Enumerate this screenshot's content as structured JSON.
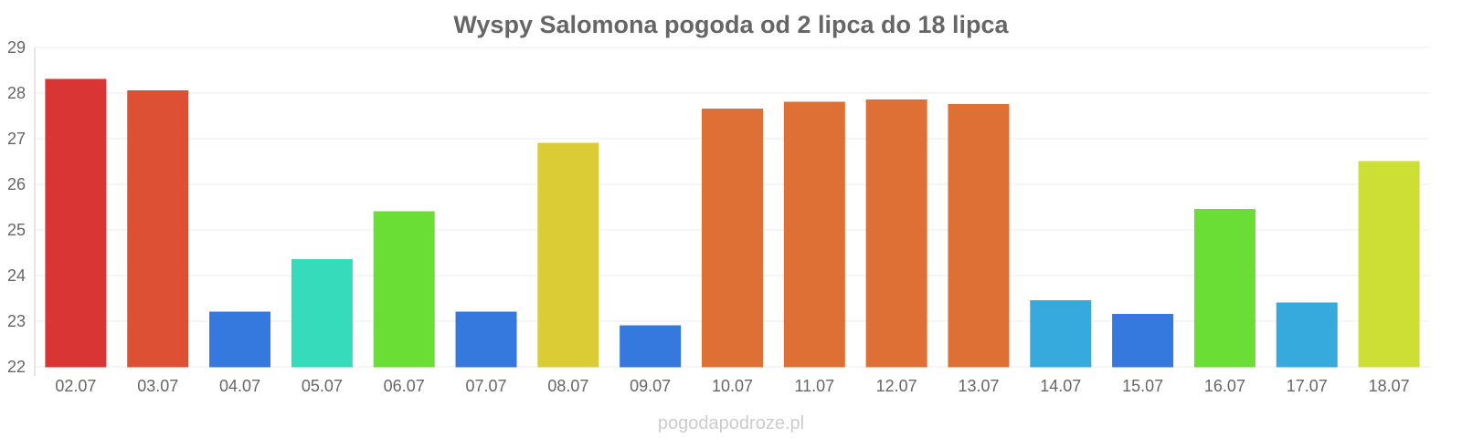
{
  "chart_data": {
    "type": "bar",
    "title": "Wyspy Salomona pogoda od 2 lipca do 18 lipca",
    "xlabel": "",
    "ylabel": "",
    "categories": [
      "02.07",
      "03.07",
      "04.07",
      "05.07",
      "06.07",
      "07.07",
      "08.07",
      "09.07",
      "10.07",
      "11.07",
      "12.07",
      "13.07",
      "14.07",
      "15.07",
      "16.07",
      "17.07",
      "18.07"
    ],
    "values": [
      28.3,
      28.05,
      23.2,
      24.35,
      25.4,
      23.2,
      26.9,
      22.9,
      27.65,
      27.8,
      27.85,
      27.75,
      23.45,
      23.15,
      25.45,
      23.4,
      26.5
    ],
    "colors": [
      "#da3535",
      "#dd5033",
      "#3579de",
      "#35dbbb",
      "#6ade35",
      "#3579de",
      "#dbcc35",
      "#3579de",
      "#de7035",
      "#de7035",
      "#de7035",
      "#de7035",
      "#36a9dd",
      "#3579de",
      "#6ade35",
      "#36a9dd",
      "#cdde35"
    ],
    "ylim": [
      22,
      29
    ],
    "yticks": [
      22,
      23,
      24,
      25,
      26,
      27,
      28,
      29
    ],
    "grid": true,
    "legend": "none"
  },
  "footer": {
    "watermark": "pogodapodroze.pl"
  }
}
